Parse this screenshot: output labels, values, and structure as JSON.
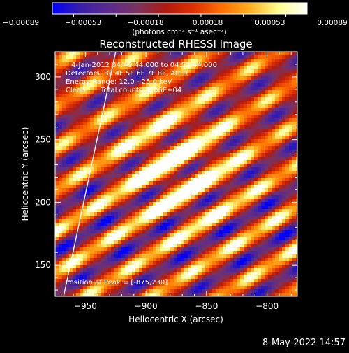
{
  "chart_data": {
    "type": "heatmap",
    "title": "Reconstructed RHESSI Image",
    "xlabel": "Heliocentric X (arcsec)",
    "ylabel": "Heliocentric Y (arcsec)",
    "xlim": [
      -975,
      -775
    ],
    "ylim": [
      125,
      320
    ],
    "xticks": [
      -950,
      -900,
      -850,
      -800
    ],
    "yticks": [
      150,
      200,
      250,
      300
    ],
    "xtick_labels": [
      "−950",
      "−900",
      "−850",
      "−800"
    ],
    "ytick_labels": [
      "150",
      "200",
      "250",
      "300"
    ],
    "colorbar": {
      "range": [
        -0.00089,
        0.00089
      ],
      "tick_labels": [
        "−0.00089",
        "−0.00053",
        "−0.00018",
        "0.00018",
        "0.00053",
        "0.00089"
      ],
      "unit_label": "(photons cm⁻² s⁻¹ asec⁻²)",
      "colors": [
        "#0000ff",
        "#3a1fa8",
        "#5b2b8e",
        "#7a3360",
        "#b01a10",
        "#e03000",
        "#ff7000",
        "#ffb020",
        "#ffff90",
        "#ffffff"
      ]
    },
    "annotations": {
      "time_range": "4-Jan-2012 04:46:44.000 to 04:52:44.000",
      "detectors": "Detectors: 3F 4F 5F 6F 7F 8F, Att 0",
      "energy_range": "Energy Range: 12.0 - 25.0 keV",
      "method": "Clean",
      "total_counts": "Total counts: 1.06E+04",
      "peak": "Position of Peak = [-875,230]"
    },
    "peak": {
      "x": -875,
      "y": 230
    },
    "limb_line": {
      "x": [
        -968,
        -925
      ],
      "y": [
        125,
        320
      ]
    },
    "grid": false
  },
  "footer": {
    "date": "8-May-2022 14:57"
  }
}
